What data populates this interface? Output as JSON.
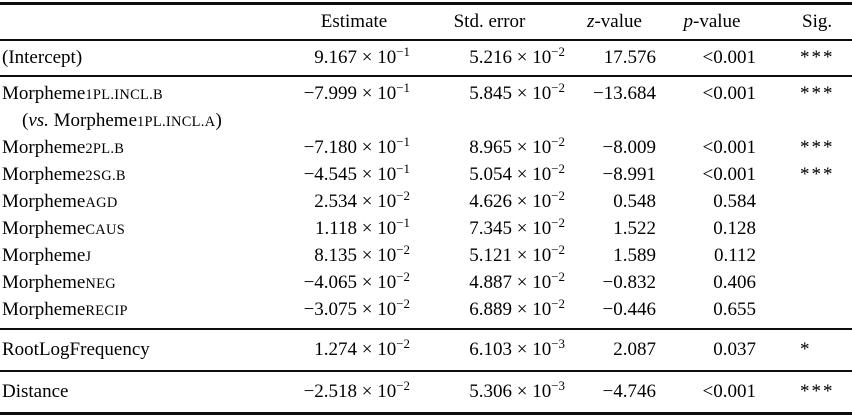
{
  "colors": {
    "background": "#ffffff",
    "text": "#000000",
    "rule": "#0d0d0d"
  },
  "table": {
    "columns": [
      {
        "key": "label",
        "segments": []
      },
      {
        "key": "estimate",
        "segments": [
          {
            "t": "Estimate"
          }
        ]
      },
      {
        "key": "std_error",
        "segments": [
          {
            "t": "Std. error"
          }
        ]
      },
      {
        "key": "z_value",
        "segments": [
          {
            "t": "z",
            "s": "i"
          },
          {
            "t": "-value"
          }
        ]
      },
      {
        "key": "p_value",
        "segments": [
          {
            "t": "p",
            "s": "i"
          },
          {
            "t": "-value"
          }
        ]
      },
      {
        "key": "sig",
        "segments": [
          {
            "t": "Sig."
          }
        ]
      }
    ],
    "groups": [
      {
        "name": "intercept",
        "rows": [
          {
            "label": [
              {
                "t": "(Intercept)"
              }
            ],
            "estimate": {
              "m": "9.167",
              "e": "−1"
            },
            "std_error": {
              "m": "5.216",
              "e": "−2"
            },
            "z_value": "17.576",
            "p_value": "<0.001",
            "sig": "***"
          }
        ]
      },
      {
        "name": "morphemes",
        "rows": [
          {
            "label": [
              {
                "t": "Morpheme"
              },
              {
                "t": "1PL.INCL.B",
                "s": "sc"
              }
            ],
            "note": [
              {
                "t": "("
              },
              {
                "t": "vs.",
                "s": "i"
              },
              {
                "t": " Morpheme"
              },
              {
                "t": "1PL.INCL.A",
                "s": "sc"
              },
              {
                "t": ")"
              }
            ],
            "estimate": {
              "m": "−7.999",
              "e": "−1"
            },
            "std_error": {
              "m": "5.845",
              "e": "−2"
            },
            "z_value": "−13.684",
            "p_value": "<0.001",
            "sig": "***"
          },
          {
            "label": [
              {
                "t": "Morpheme"
              },
              {
                "t": "2PL.B",
                "s": "sc"
              }
            ],
            "estimate": {
              "m": "−7.180",
              "e": "−1"
            },
            "std_error": {
              "m": "8.965",
              "e": "−2"
            },
            "z_value": "−8.009",
            "p_value": "<0.001",
            "sig": "***"
          },
          {
            "label": [
              {
                "t": "Morpheme"
              },
              {
                "t": "2SG.B",
                "s": "sc"
              }
            ],
            "estimate": {
              "m": "−4.545",
              "e": "−1"
            },
            "std_error": {
              "m": "5.054",
              "e": "−2"
            },
            "z_value": "−8.991",
            "p_value": "<0.001",
            "sig": "***"
          },
          {
            "label": [
              {
                "t": "Morpheme"
              },
              {
                "t": "AGD",
                "s": "sc"
              }
            ],
            "estimate": {
              "m": "2.534",
              "e": "−2"
            },
            "std_error": {
              "m": "4.626",
              "e": "−2"
            },
            "z_value": "0.548",
            "p_value": "0.584",
            "sig": ""
          },
          {
            "label": [
              {
                "t": "Morpheme"
              },
              {
                "t": "CAUS",
                "s": "sc"
              }
            ],
            "estimate": {
              "m": "1.118",
              "e": "−1"
            },
            "std_error": {
              "m": "7.345",
              "e": "−2"
            },
            "z_value": "1.522",
            "p_value": "0.128",
            "sig": ""
          },
          {
            "label": [
              {
                "t": "Morpheme"
              },
              {
                "t": "J",
                "s": "sc"
              }
            ],
            "estimate": {
              "m": "8.135",
              "e": "−2"
            },
            "std_error": {
              "m": "5.121",
              "e": "−2"
            },
            "z_value": "1.589",
            "p_value": "0.112",
            "sig": ""
          },
          {
            "label": [
              {
                "t": "Morpheme"
              },
              {
                "t": "NEG",
                "s": "sc"
              }
            ],
            "estimate": {
              "m": "−4.065",
              "e": "−2"
            },
            "std_error": {
              "m": "4.887",
              "e": "−2"
            },
            "z_value": "−0.832",
            "p_value": "0.406",
            "sig": ""
          },
          {
            "label": [
              {
                "t": "Morpheme"
              },
              {
                "t": "RECIP",
                "s": "sc"
              }
            ],
            "estimate": {
              "m": "−3.075",
              "e": "−2"
            },
            "std_error": {
              "m": "6.889",
              "e": "−2"
            },
            "z_value": "−0.446",
            "p_value": "0.655",
            "sig": ""
          }
        ]
      },
      {
        "name": "root-log-frequency",
        "rows": [
          {
            "label": [
              {
                "t": "RootLogFrequency"
              }
            ],
            "estimate": {
              "m": "1.274",
              "e": "−2"
            },
            "std_error": {
              "m": "6.103",
              "e": "−3"
            },
            "z_value": "2.087",
            "p_value": "0.037",
            "sig": "*"
          }
        ]
      },
      {
        "name": "distance",
        "rows": [
          {
            "label": [
              {
                "t": "Distance"
              }
            ],
            "estimate": {
              "m": "−2.518",
              "e": "−2"
            },
            "std_error": {
              "m": "5.306",
              "e": "−3"
            },
            "z_value": "−4.746",
            "p_value": "<0.001",
            "sig": "***"
          }
        ]
      }
    ],
    "notation": {
      "times_ten": " × 10"
    }
  }
}
